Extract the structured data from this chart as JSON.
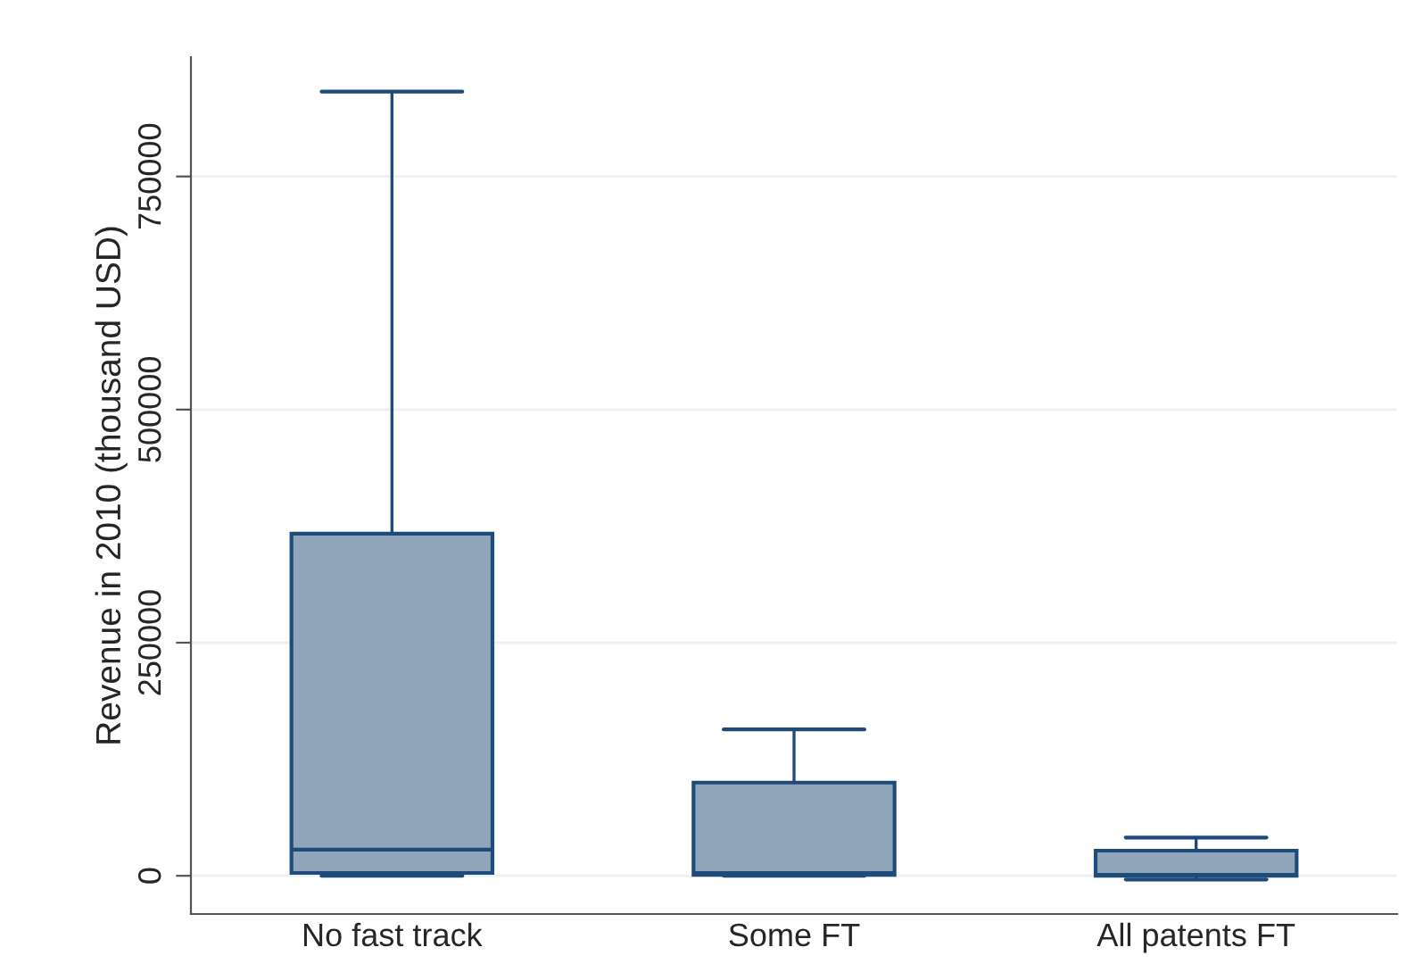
{
  "chart_data": {
    "type": "box",
    "ylabel": "Revenue in 2010 (thousand USD)",
    "categories": [
      "No fast track",
      "Some FT",
      "All patents FT"
    ],
    "boxes": [
      {
        "low": 0,
        "q1": 3000,
        "median": 28000,
        "q3": 367000,
        "high": 841000
      },
      {
        "low": 0,
        "q1": 1000,
        "median": 3000,
        "q3": 100000,
        "high": 157000
      },
      {
        "low": -4000,
        "q1": 0,
        "median": 1000,
        "q3": 27000,
        "high": 41000
      }
    ],
    "color": "#8ea5ba",
    "ylim": [
      -41000,
      878000
    ],
    "yticks": [
      0,
      250000,
      500000,
      750000
    ],
    "grid": "y"
  }
}
